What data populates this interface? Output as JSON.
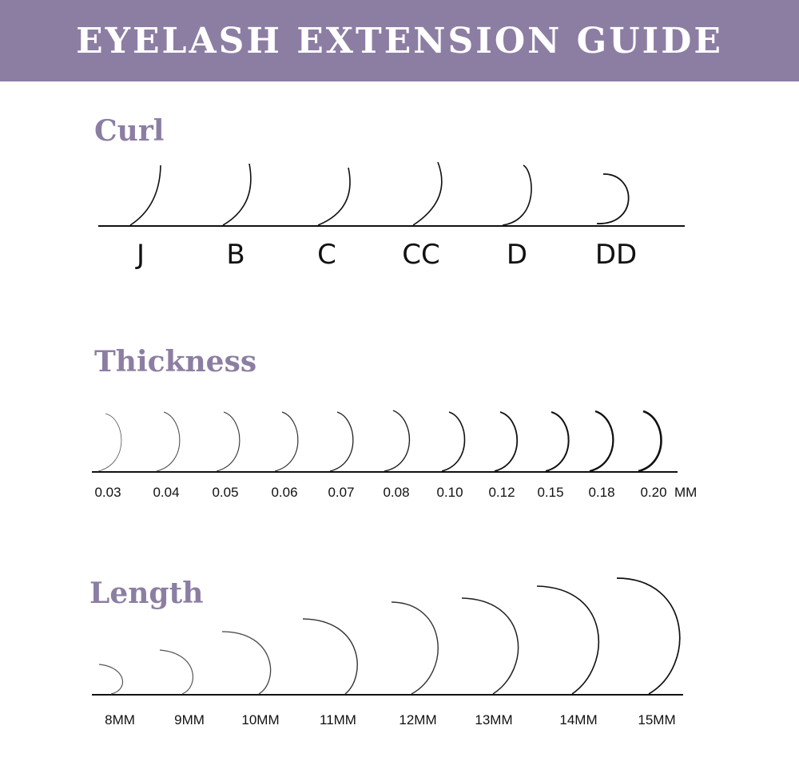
{
  "title": "EYELASH EXTENSION GUIDE",
  "colors": {
    "banner": "#8c7ea3",
    "heading": "#8c7ea3",
    "line": "#111111"
  },
  "curl": {
    "heading": "Curl",
    "items": [
      "J",
      "B",
      "C",
      "CC",
      "D",
      "DD"
    ]
  },
  "thickness": {
    "heading": "Thickness",
    "items": [
      "0.03",
      "0.04",
      "0.05",
      "0.06",
      "0.07",
      "0.08",
      "0.10",
      "0.12",
      "0.15",
      "0.18",
      "0.20"
    ],
    "unit": "MM"
  },
  "length": {
    "heading": "Length",
    "items": [
      "8MM",
      "9MM",
      "10MM",
      "11MM",
      "12MM",
      "13MM",
      "14MM",
      "15MM"
    ]
  }
}
